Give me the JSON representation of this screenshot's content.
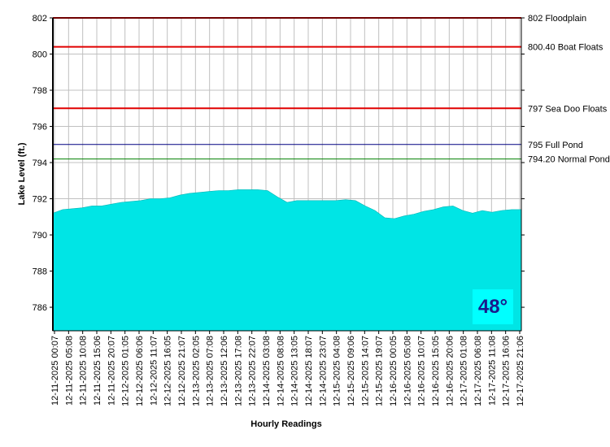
{
  "chart_data": {
    "type": "area",
    "xlabel": "Hourly Readings",
    "ylabel": "Lake Level (ft.)",
    "ylim": [
      784.7,
      802.0
    ],
    "y_ticks": [
      "786",
      "788",
      "790",
      "792",
      "794",
      "796",
      "798",
      "800",
      "802"
    ],
    "grid": true,
    "x_tick_labels": [
      "12-11-2025 00:07",
      "12-11-2025 05:08",
      "12-11-2025 10:08",
      "12-11-2025 15:06",
      "12-11-2025 20:07",
      "12-12-2025 01:05",
      "12-12-2025 06:06",
      "12-12-2025 11:07",
      "12-12-2025 16:05",
      "12-12-2025 21:07",
      "12-13-2025 02:05",
      "12-13-2025 07:08",
      "12-13-2025 12:06",
      "12-13-2025 17:08",
      "12-13-2025 22:07",
      "12-14-2025 03:08",
      "12-14-2025 08:08",
      "12-14-2025 13:05",
      "12-14-2025 18:07",
      "12-14-2025 23:07",
      "12-15-2025 04:08",
      "12-15-2025 09:06",
      "12-15-2025 14:07",
      "12-15-2025 19:07",
      "12-16-2025 00:05",
      "12-16-2025 05:08",
      "12-16-2025 10:07",
      "12-16-2025 15:05",
      "12-16-2025 20:06",
      "12-17-2025 01:08",
      "12-17-2025 06:08",
      "12-17-2025 11:08",
      "12-17-2025 16:06",
      "12-17-2025 21:06"
    ],
    "series": [
      {
        "color": "#00e5e5",
        "values": [
          791.2,
          791.4,
          791.45,
          791.5,
          791.6,
          791.6,
          791.7,
          791.8,
          791.85,
          791.9,
          792.0,
          792.0,
          792.05,
          792.2,
          792.3,
          792.35,
          792.4,
          792.45,
          792.45,
          792.5,
          792.5,
          792.5,
          792.45,
          792.1,
          791.8,
          791.9,
          791.9,
          791.9,
          791.9,
          791.9,
          791.95,
          791.9,
          791.6,
          791.35,
          790.95,
          790.9,
          791.05,
          791.15,
          791.3,
          791.4,
          791.55,
          791.6,
          791.35,
          791.2,
          791.35,
          791.25,
          791.35,
          791.4,
          791.4
        ]
      }
    ],
    "reference_lines": [
      {
        "value": 802,
        "label": "802 Floodplain",
        "color": "#e00000"
      },
      {
        "value": 800.4,
        "label": "800.40 Boat Floats",
        "color": "#e00000"
      },
      {
        "value": 797,
        "label": "797 Sea Doo Floats",
        "color": "#e00000"
      },
      {
        "value": 795,
        "label": "795 Full Pond",
        "color": "#000080"
      },
      {
        "value": 794.2,
        "label": "794.20 Normal Pond",
        "color": "#008000"
      }
    ]
  },
  "badge": {
    "text": "48°"
  }
}
